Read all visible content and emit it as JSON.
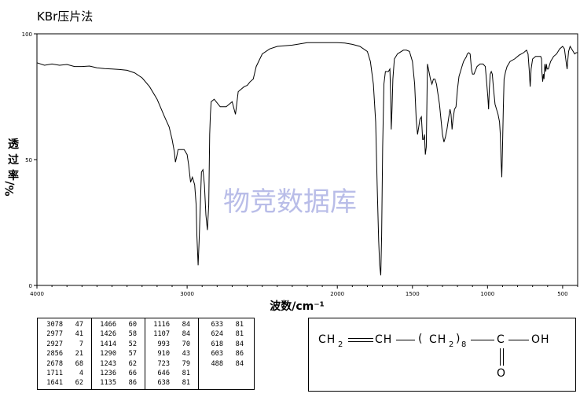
{
  "method_title": "KBr压片法",
  "chart_data": {
    "type": "line",
    "title": "",
    "xlabel": "波数/cm⁻¹",
    "ylabel_lines": [
      "透",
      "过",
      "率",
      "%/"
    ],
    "xlim": [
      4000,
      400
    ],
    "ylim": [
      0,
      100
    ],
    "x_tick_labels": [
      "4000",
      "3000",
      "2000",
      "1500",
      "1000",
      "500"
    ],
    "y_tick_labels": [
      "0",
      "50",
      "100"
    ],
    "watermark": "物竞数据库",
    "series": [
      {
        "x": [
          4000,
          3950,
          3900,
          3850,
          3800,
          3750,
          3700,
          3650,
          3600,
          3550,
          3500,
          3450,
          3400,
          3350,
          3300,
          3250,
          3200,
          3150,
          3120,
          3100,
          3085,
          3078,
          3070,
          3060,
          3040,
          3020,
          3000,
          2990,
          2977,
          2965,
          2950,
          2940,
          2935,
          2927,
          2920,
          2912,
          2905,
          2895,
          2885,
          2875,
          2865,
          2856,
          2850,
          2845,
          2840,
          2820,
          2780,
          2740,
          2700,
          2678,
          2660,
          2640,
          2620,
          2600,
          2580,
          2560,
          2540,
          2500,
          2450,
          2400,
          2300,
          2200,
          2100,
          2000,
          1950,
          1900,
          1850,
          1800,
          1780,
          1760,
          1745,
          1735,
          1725,
          1718,
          1711,
          1705,
          1698,
          1690,
          1680,
          1670,
          1660,
          1650,
          1645,
          1641,
          1636,
          1630,
          1620,
          1600,
          1560,
          1540,
          1520,
          1500,
          1485,
          1475,
          1466,
          1458,
          1450,
          1440,
          1432,
          1426,
          1420,
          1414,
          1408,
          1400,
          1390,
          1380,
          1370,
          1360,
          1350,
          1340,
          1330,
          1320,
          1310,
          1300,
          1290,
          1280,
          1270,
          1260,
          1250,
          1243,
          1236,
          1230,
          1220,
          1210,
          1200,
          1190,
          1180,
          1170,
          1160,
          1150,
          1140,
          1135,
          1125,
          1116,
          1107,
          1100,
          1090,
          1070,
          1050,
          1030,
          1015,
          1005,
          998,
          993,
          988,
          982,
          975,
          968,
          960,
          950,
          940,
          930,
          920,
          915,
          910,
          905,
          900,
          895,
          890,
          880,
          870,
          850,
          820,
          790,
          760,
          740,
          730,
          723,
          716,
          710,
          700,
          680,
          660,
          646,
          640,
          638,
          633,
          628,
          624,
          618,
          612,
          608,
          603,
          595,
          580,
          560,
          540,
          520,
          500,
          488,
          475,
          470,
          465,
          460,
          450,
          440,
          430,
          420,
          410,
          400
        ],
        "y": [
          88.5,
          87.5,
          88,
          87.5,
          87.8,
          87,
          87,
          87.2,
          86.5,
          86.2,
          86,
          85.8,
          85.5,
          84.5,
          82.5,
          79,
          74,
          67,
          63,
          58,
          53,
          49,
          51,
          54,
          54,
          54,
          52,
          48,
          41,
          43,
          40,
          32,
          20,
          8,
          18,
          32,
          45,
          46,
          40,
          28,
          22,
          32,
          60,
          68,
          73,
          74,
          71,
          71,
          73,
          68,
          77,
          78,
          79,
          79.5,
          81,
          82,
          87,
          92,
          94,
          95,
          95.5,
          96.5,
          96.5,
          96.5,
          96.3,
          95.8,
          95,
          93,
          89,
          80,
          65,
          40,
          18,
          8,
          4,
          20,
          55,
          80,
          85,
          85,
          85,
          86,
          75,
          62,
          70,
          82,
          90,
          92,
          93.5,
          93.5,
          93,
          89,
          80,
          66,
          60,
          63,
          66,
          67,
          58,
          58,
          60,
          52,
          55,
          88,
          85,
          82,
          80,
          82,
          82,
          80,
          76,
          72,
          66,
          60,
          57,
          59,
          62,
          66,
          70,
          68,
          62,
          66,
          70,
          71,
          78,
          83,
          85,
          87,
          89,
          90,
          91,
          92,
          92.5,
          92,
          86,
          84,
          84,
          87,
          88,
          88,
          87,
          80,
          75,
          70,
          78,
          84,
          85,
          84,
          78,
          72,
          70,
          68,
          65,
          60,
          50,
          43,
          55,
          70,
          82,
          85,
          87,
          89,
          90,
          91.5,
          92.5,
          93.5,
          92,
          86,
          79,
          86,
          90,
          91,
          91,
          91,
          90,
          85,
          81,
          84,
          82,
          88,
          85,
          88,
          86,
          86,
          89,
          91,
          92,
          94,
          95,
          94,
          88,
          86,
          90,
          93,
          95,
          94,
          93,
          92,
          92.5,
          92.5
        ]
      }
    ]
  },
  "peak_table": {
    "columns": [
      [
        [
          "3078",
          "47"
        ],
        [
          "2977",
          "41"
        ],
        [
          "2927",
          "7"
        ],
        [
          "2856",
          "21"
        ],
        [
          "2678",
          "68"
        ],
        [
          "1711",
          "4"
        ],
        [
          "1641",
          "62"
        ]
      ],
      [
        [
          "1466",
          "60"
        ],
        [
          "1426",
          "58"
        ],
        [
          "1414",
          "52"
        ],
        [
          "1290",
          "57"
        ],
        [
          "1243",
          "62"
        ],
        [
          "1236",
          "66"
        ],
        [
          "1135",
          "86"
        ]
      ],
      [
        [
          "1116",
          "84"
        ],
        [
          "1107",
          "84"
        ],
        [
          "993",
          "70"
        ],
        [
          "910",
          "43"
        ],
        [
          "723",
          "79"
        ],
        [
          "646",
          "81"
        ],
        [
          "638",
          "81"
        ]
      ],
      [
        [
          "633",
          "81"
        ],
        [
          "624",
          "81"
        ],
        [
          "618",
          "84"
        ],
        [
          "603",
          "86"
        ],
        [
          "488",
          "84"
        ]
      ]
    ]
  },
  "structure": {
    "left_group": "CH",
    "left_group_sub": "2",
    "vinyl_ch": "CH",
    "paren_open": "(",
    "chain_group": "CH",
    "chain_group_sub": "2",
    "paren_close": ")",
    "repeat_count": "8",
    "carbonyl_c": "C",
    "oh": "OH",
    "carbonyl_o": "O"
  }
}
